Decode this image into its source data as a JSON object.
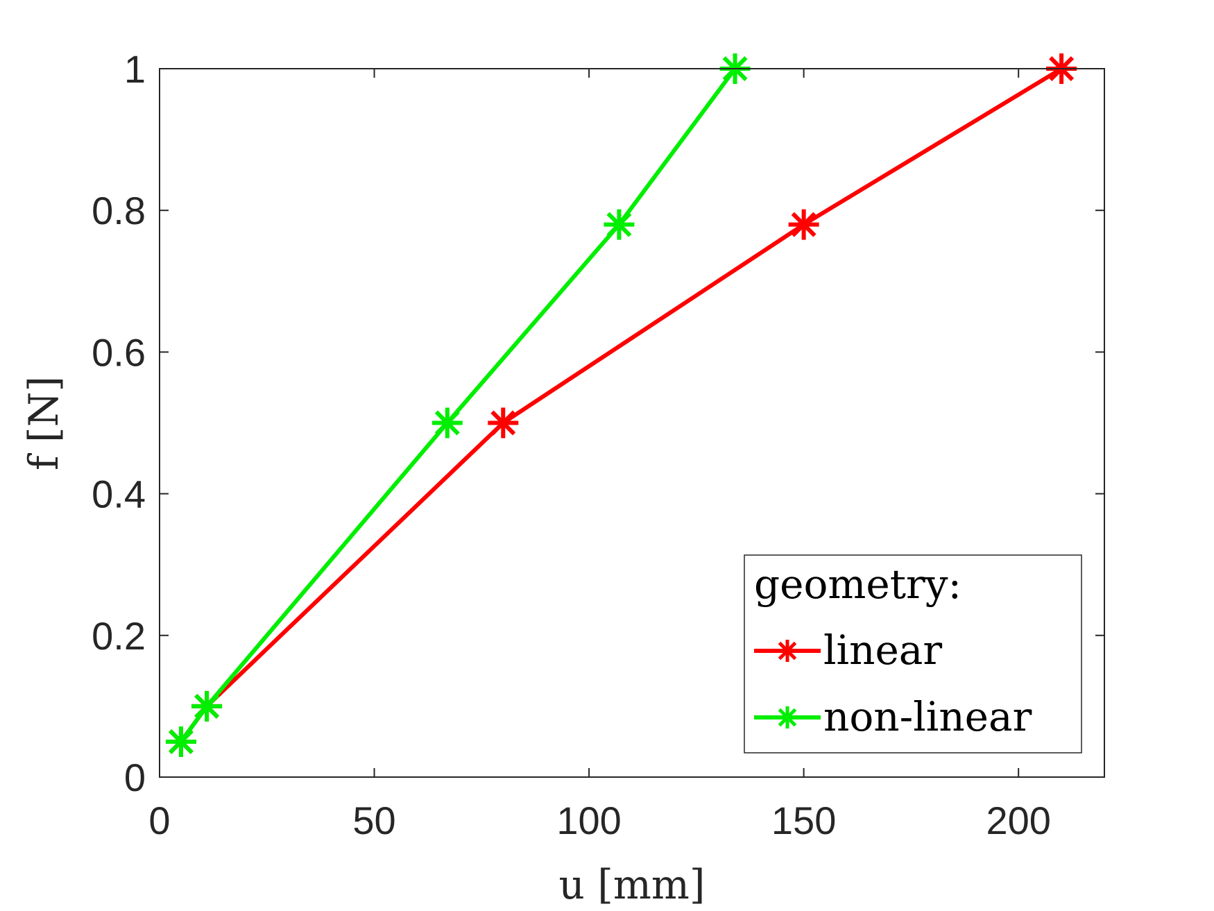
{
  "chart_data": {
    "type": "line",
    "xlabel": "u [mm]",
    "ylabel": "f [N]",
    "xlim": [
      0,
      220
    ],
    "ylim": [
      0,
      1
    ],
    "x_ticks": [
      0,
      50,
      100,
      150,
      200
    ],
    "y_ticks": [
      0,
      0.2,
      0.4,
      0.6,
      0.8,
      1
    ],
    "x_tick_labels": [
      "0",
      "50",
      "100",
      "150",
      "200"
    ],
    "y_tick_labels": [
      "0",
      "0.2",
      "0.4",
      "0.6",
      "0.8",
      "1"
    ],
    "grid": false,
    "legend": {
      "title": "geometry:",
      "placement": "bottom-right"
    },
    "series": [
      {
        "name": "linear",
        "color": "#ff0000",
        "marker": "asterisk",
        "x": [
          5,
          11,
          80,
          150,
          210
        ],
        "y": [
          0.05,
          0.1,
          0.5,
          0.78,
          1.0
        ]
      },
      {
        "name": "non-linear",
        "color": "#00ee00",
        "marker": "asterisk",
        "x": [
          5,
          11,
          67,
          107,
          134
        ],
        "y": [
          0.05,
          0.1,
          0.5,
          0.78,
          1.0
        ]
      }
    ]
  }
}
